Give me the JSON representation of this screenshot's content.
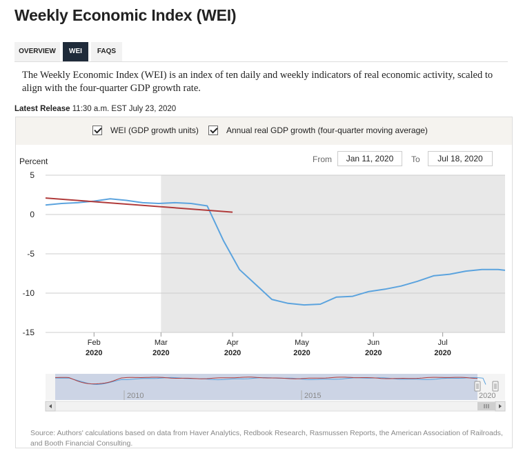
{
  "page": {
    "title": "Weekly Economic Index (WEI)",
    "tabs": [
      {
        "label": "OVERVIEW"
      },
      {
        "label": "WEI"
      },
      {
        "label": "FAQS"
      }
    ],
    "description": "The Weekly Economic Index (WEI) is an index of ten daily and weekly indicators of real economic activity, scaled to align with the four-quarter GDP growth rate.",
    "release_label": "Latest Release",
    "release_value": "11:30 a.m. EST July 23, 2020",
    "source": "Source: Authors' calculations based on data from Haver Analytics, Redbook Research, Rasmussen Reports, the American Association of Railroads, and Booth Financial Consulting."
  },
  "controls": {
    "legend": [
      {
        "label": "WEI (GDP growth units)",
        "checked": true
      },
      {
        "label": "Annual real GDP growth (four-quarter moving average)",
        "checked": true
      }
    ],
    "from_label": "From",
    "from_value": "Jan 11, 2020",
    "to_label": "To",
    "to_value": "Jul 18, 2020"
  },
  "chart_data": {
    "type": "line",
    "ylabel": "Percent",
    "ylim": [
      -15,
      5
    ],
    "yticks": [
      5,
      0,
      -5,
      -10,
      -15
    ],
    "x_domain": [
      "2020-01-11",
      "2020-07-28"
    ],
    "xticks": [
      {
        "date": "2020-02-01",
        "month": "Feb",
        "year": "2020"
      },
      {
        "date": "2020-03-01",
        "month": "Mar",
        "year": "2020"
      },
      {
        "date": "2020-04-01",
        "month": "Apr",
        "year": "2020"
      },
      {
        "date": "2020-05-01",
        "month": "May",
        "year": "2020"
      },
      {
        "date": "2020-06-01",
        "month": "Jun",
        "year": "2020"
      },
      {
        "date": "2020-07-01",
        "month": "Jul",
        "year": "2020"
      }
    ],
    "recession_shading_start": "2020-03-01",
    "colors": {
      "wei": "#5ba3de",
      "gdp": "#b03a3a",
      "shade": "#e8e8e8",
      "grid": "#cccccc"
    },
    "series": [
      {
        "name": "WEI (GDP growth units)",
        "points": [
          [
            "2020-01-11",
            1.2
          ],
          [
            "2020-01-18",
            1.4
          ],
          [
            "2020-01-25",
            1.5
          ],
          [
            "2020-02-01",
            1.7
          ],
          [
            "2020-02-08",
            2.0
          ],
          [
            "2020-02-15",
            1.8
          ],
          [
            "2020-02-22",
            1.5
          ],
          [
            "2020-02-29",
            1.4
          ],
          [
            "2020-03-07",
            1.5
          ],
          [
            "2020-03-14",
            1.4
          ],
          [
            "2020-03-21",
            1.1
          ],
          [
            "2020-03-28",
            -3.3
          ],
          [
            "2020-04-04",
            -7.0
          ],
          [
            "2020-04-11",
            -8.9
          ],
          [
            "2020-04-18",
            -10.8
          ],
          [
            "2020-04-25",
            -11.3
          ],
          [
            "2020-05-02",
            -11.5
          ],
          [
            "2020-05-09",
            -11.4
          ],
          [
            "2020-05-16",
            -10.5
          ],
          [
            "2020-05-23",
            -10.4
          ],
          [
            "2020-05-30",
            -9.8
          ],
          [
            "2020-06-06",
            -9.5
          ],
          [
            "2020-06-13",
            -9.1
          ],
          [
            "2020-06-20",
            -8.5
          ],
          [
            "2020-06-27",
            -7.8
          ],
          [
            "2020-07-04",
            -7.6
          ],
          [
            "2020-07-11",
            -7.2
          ],
          [
            "2020-07-18",
            -7.0
          ],
          [
            "2020-07-25",
            -7.0
          ],
          [
            "2020-07-28",
            -7.1
          ]
        ]
      },
      {
        "name": "Annual real GDP growth (four-quarter moving average)",
        "points": [
          [
            "2020-01-11",
            2.1
          ],
          [
            "2020-04-01",
            0.3
          ]
        ]
      }
    ]
  },
  "navigator": {
    "year_labels": [
      "2010",
      "2015",
      "2020"
    ]
  }
}
